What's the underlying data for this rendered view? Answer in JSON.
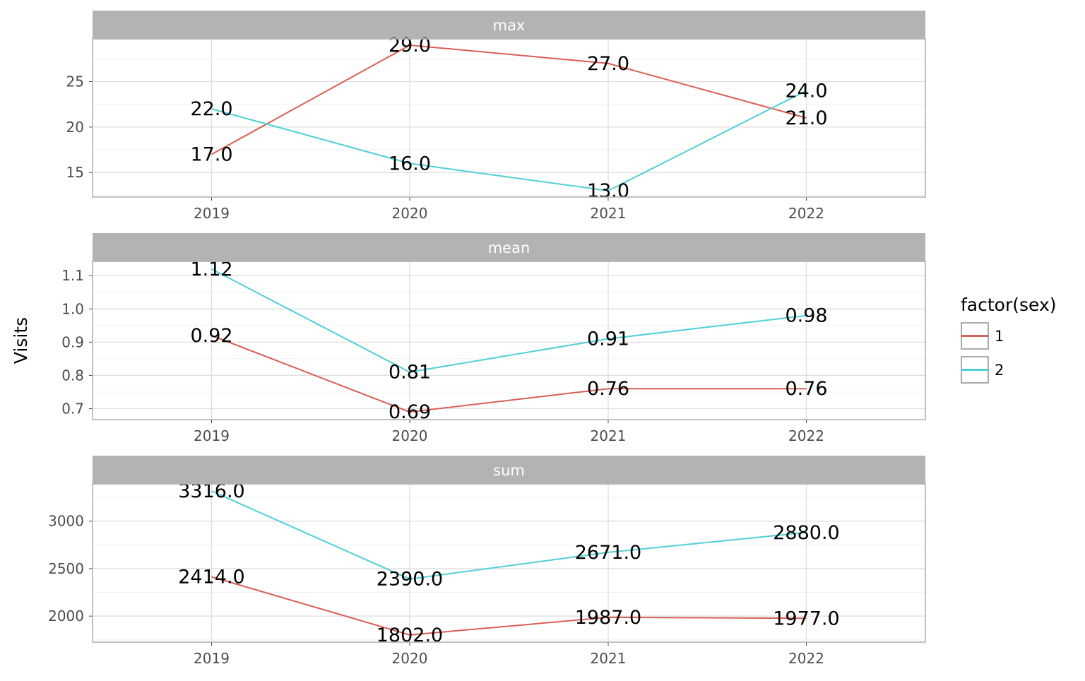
{
  "chart_data": {
    "type": "line",
    "ylabel": "Visits",
    "x": [
      "2019",
      "2020",
      "2021",
      "2022"
    ],
    "grid": true,
    "legend": {
      "title": "factor(sex)",
      "position": "right",
      "entries": [
        {
          "label": "1",
          "color": "#d95f55"
        },
        {
          "label": "2",
          "color": "#4fd0d6"
        }
      ]
    },
    "panels": [
      {
        "title": "max",
        "ylim": [
          12.3,
          29.7
        ],
        "yticks": [
          15,
          20,
          25
        ],
        "ytick_labels": [
          "15",
          "20",
          "25"
        ],
        "series": [
          {
            "name": "1",
            "color": "#d95f55",
            "values": [
              17,
              29,
              27,
              21
            ],
            "labels": [
              "17.0",
              "29.0",
              "27.0",
              "21.0"
            ]
          },
          {
            "name": "2",
            "color": "#4fd0d6",
            "values": [
              22,
              16,
              13,
              24
            ],
            "labels": [
              "22.0",
              "16.0",
              "13.0",
              "24.0"
            ]
          }
        ]
      },
      {
        "title": "mean",
        "ylim": [
          0.667,
          1.143
        ],
        "yticks": [
          0.7,
          0.8,
          0.9,
          1.0,
          1.1
        ],
        "ytick_labels": [
          "0.7",
          "0.8",
          "0.9",
          "1.0",
          "1.1"
        ],
        "series": [
          {
            "name": "1",
            "color": "#d95f55",
            "values": [
              0.92,
              0.69,
              0.76,
              0.76
            ],
            "labels": [
              "0.92",
              "0.69",
              "0.76",
              "0.76"
            ]
          },
          {
            "name": "2",
            "color": "#4fd0d6",
            "values": [
              1.12,
              0.81,
              0.91,
              0.98
            ],
            "labels": [
              "1.12",
              "0.81",
              "0.91",
              "0.98"
            ]
          }
        ]
      },
      {
        "title": "sum",
        "ylim": [
          1726,
          3392
        ],
        "yticks": [
          2000,
          2500,
          3000
        ],
        "ytick_labels": [
          "2000",
          "2500",
          "3000"
        ],
        "series": [
          {
            "name": "1",
            "color": "#d95f55",
            "values": [
              2414,
              1802,
              1987,
              1977
            ],
            "labels": [
              "2414.0",
              "1802.0",
              "1987.0",
              "1977.0"
            ]
          },
          {
            "name": "2",
            "color": "#4fd0d6",
            "values": [
              3316,
              2390,
              2671,
              2880
            ],
            "labels": [
              "3316.0",
              "2390.0",
              "2671.0",
              "2880.0"
            ]
          }
        ]
      }
    ]
  }
}
